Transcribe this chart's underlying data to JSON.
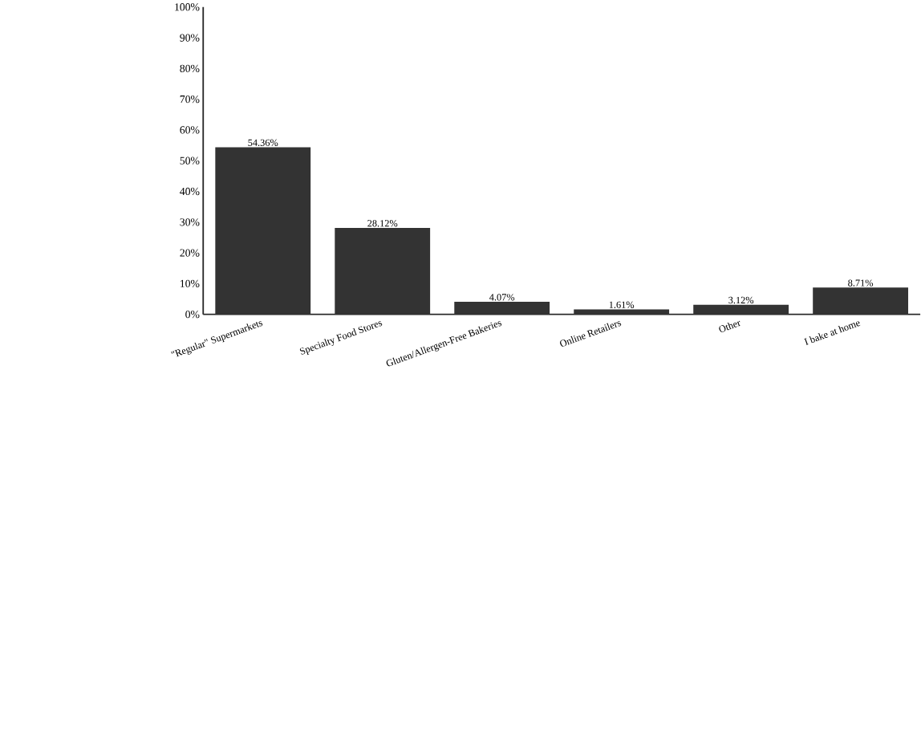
{
  "chart_data": {
    "type": "bar",
    "categories": [
      "\"Regular\" Supermarkets",
      "Specialty Food Stores",
      "Gluten/Allergen-Free Bakeries",
      "Online Retailers",
      "Other",
      "I bake at home"
    ],
    "values": [
      54.36,
      28.12,
      4.07,
      1.61,
      3.12,
      8.71
    ],
    "value_labels": [
      "54.36%",
      "28.12%",
      "4.07%",
      "1.61%",
      "3.12%",
      "8.71%"
    ],
    "color": "#333333",
    "ylim": [
      0,
      100
    ],
    "yticks": [
      {
        "value": 0,
        "label": "0%"
      },
      {
        "value": 10,
        "label": "10%"
      },
      {
        "value": 20,
        "label": "20%"
      },
      {
        "value": 30,
        "label": "30%"
      },
      {
        "value": 40,
        "label": "40%"
      },
      {
        "value": 50,
        "label": "50%"
      },
      {
        "value": 60,
        "label": "60%"
      },
      {
        "value": 70,
        "label": "70%"
      },
      {
        "value": 80,
        "label": "80%"
      },
      {
        "value": 90,
        "label": "90%"
      },
      {
        "value": 100,
        "label": "100%"
      }
    ]
  }
}
